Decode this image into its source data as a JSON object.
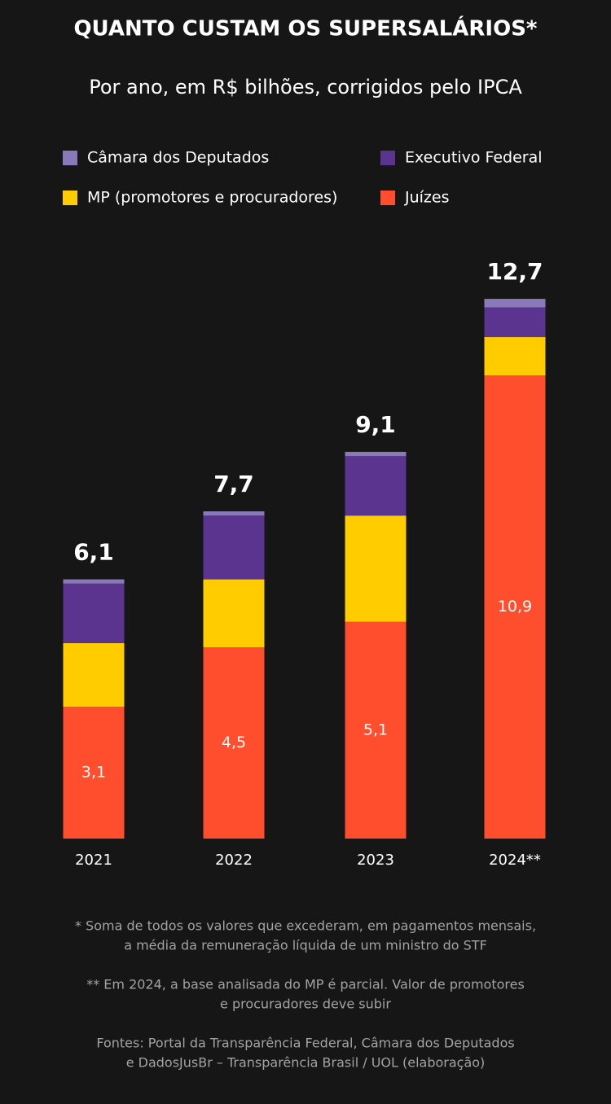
{
  "chart_data": {
    "type": "stacked-bar",
    "title": "QUANTO CUSTAM OS SUPERSALÁRIOS*",
    "subtitle": "Por ano, em R$ bilhões, corrigidos pelo IPCA",
    "categories": [
      "2021",
      "2022",
      "2023",
      "2024**"
    ],
    "series": [
      {
        "name": "Câmara dos Deputados",
        "color": "#8a79b8",
        "values": [
          0.1,
          0.1,
          0.1,
          0.2
        ]
      },
      {
        "name": "Executivo Federal",
        "color": "#5b3490",
        "values": [
          1.4,
          1.5,
          1.4,
          0.7
        ]
      },
      {
        "name": "MP (promotores e procuradores)",
        "color": "#ffcc00",
        "values": [
          1.5,
          1.6,
          2.5,
          0.9
        ]
      },
      {
        "name": "Juízes",
        "color": "#ff4e2e",
        "values": [
          3.1,
          4.5,
          5.1,
          10.9
        ],
        "value_labels": [
          "3,1",
          "4,5",
          "5,1",
          "10,9"
        ]
      }
    ],
    "totals": [
      6.1,
      7.7,
      9.1,
      12.7
    ],
    "total_labels": [
      "6,1",
      "7,7",
      "9,1",
      "12,7"
    ],
    "footnotes": [
      [
        "* Soma de todos os valores que excederam, em pagamentos mensais,",
        "a média da remuneração líquida de um ministro do STF"
      ],
      [
        "** Em 2024, a base analisada do MP é parcial. Valor de promotores",
        "e procuradores deve subir"
      ],
      [
        "Fontes: Portal da Transparência Federal, Câmara dos Deputados",
        "e DadosJusBr – Transparência Brasil / UOL (elaboração)"
      ]
    ]
  }
}
